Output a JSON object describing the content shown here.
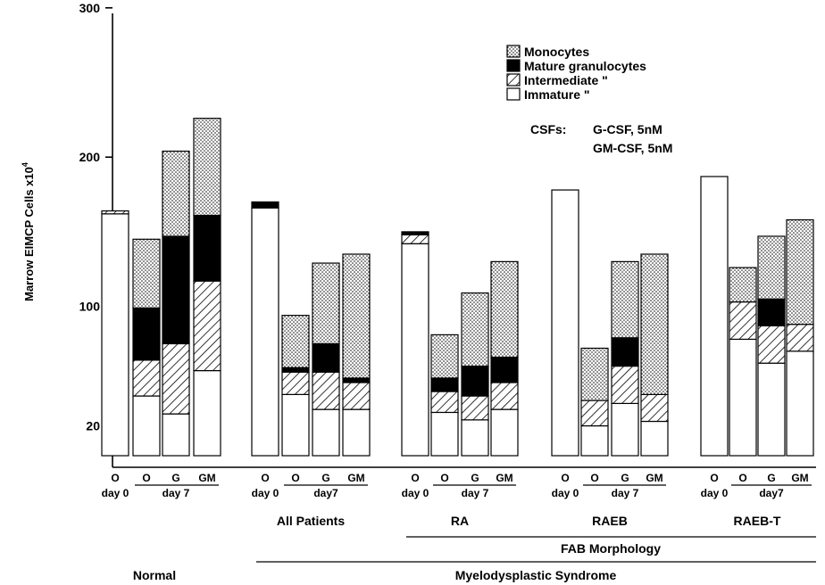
{
  "chart_data": {
    "type": "bar",
    "stacked": true,
    "ylabel": "Marrow EIMCP Cells x10",
    "ylabel_superscript": "4",
    "ylim": [
      0,
      300
    ],
    "y_ticks": [
      {
        "value": 20,
        "label": "20"
      },
      {
        "value": 100,
        "label": "100"
      },
      {
        "value": 200,
        "label": "200"
      },
      {
        "value": 300,
        "label": "300"
      }
    ],
    "grid": false,
    "legend_position": "top-right",
    "series": [
      {
        "name": "Immature \"",
        "pattern": "blank"
      },
      {
        "name": "Intermediate \"",
        "pattern": "hatched"
      },
      {
        "name": "Mature granulocytes",
        "pattern": "solid"
      },
      {
        "name": "Monocytes",
        "pattern": "dotted"
      }
    ],
    "legend_order": [
      3,
      2,
      1,
      0
    ],
    "csf_note": {
      "label": "CSFs:",
      "lines": [
        "G-CSF, 5nM",
        "GM-CSF, 5nM"
      ]
    },
    "bars": [
      {
        "group": "Normal",
        "code": "O",
        "values": [
          162,
          2,
          0,
          0
        ]
      },
      {
        "group": "Normal",
        "code": "O",
        "values": [
          40,
          24,
          35,
          46
        ]
      },
      {
        "group": "Normal",
        "code": "G",
        "values": [
          28,
          47,
          72,
          57
        ]
      },
      {
        "group": "Normal",
        "code": "GM",
        "values": [
          57,
          60,
          44,
          65
        ]
      },
      {
        "group": "All Patients",
        "code": "O",
        "values": [
          166,
          0,
          4,
          0
        ]
      },
      {
        "group": "All Patients",
        "code": "O",
        "values": [
          41,
          15,
          3,
          35
        ]
      },
      {
        "group": "All Patients",
        "code": "G",
        "values": [
          31,
          25,
          19,
          54
        ]
      },
      {
        "group": "All Patients",
        "code": "GM",
        "values": [
          31,
          18,
          3,
          83
        ]
      },
      {
        "group": "RA",
        "code": "O",
        "values": [
          142,
          6,
          2,
          0
        ]
      },
      {
        "group": "RA",
        "code": "O",
        "values": [
          29,
          14,
          9,
          29
        ]
      },
      {
        "group": "RA",
        "code": "G",
        "values": [
          24,
          16,
          20,
          49
        ]
      },
      {
        "group": "RA",
        "code": "GM",
        "values": [
          31,
          18,
          17,
          64
        ]
      },
      {
        "group": "RAEB",
        "code": "O",
        "values": [
          178,
          0,
          0,
          0
        ]
      },
      {
        "group": "RAEB",
        "code": "O",
        "values": [
          20,
          17,
          0,
          35
        ]
      },
      {
        "group": "RAEB",
        "code": "G",
        "values": [
          35,
          25,
          19,
          51
        ]
      },
      {
        "group": "RAEB",
        "code": "GM",
        "values": [
          23,
          18,
          0,
          94
        ]
      },
      {
        "group": "RAEB-T",
        "code": "O",
        "values": [
          187,
          0,
          0,
          0
        ]
      },
      {
        "group": "RAEB-T",
        "code": "O",
        "values": [
          78,
          25,
          0,
          23
        ]
      },
      {
        "group": "RAEB-T",
        "code": "G",
        "values": [
          62,
          25,
          18,
          42
        ]
      },
      {
        "group": "RAEB-T",
        "code": "GM",
        "values": [
          70,
          18,
          0,
          70
        ]
      }
    ],
    "bar_codes": [
      "O",
      "O",
      "G",
      "GM",
      "O",
      "O",
      "G",
      "GM",
      "O",
      "O",
      "G",
      "GM",
      "O",
      "O",
      "G",
      "GM",
      "O",
      "O",
      "G",
      "GM"
    ],
    "day_labels": [
      {
        "text": "day 0",
        "under_bar": 0
      },
      {
        "text": "day 7",
        "under_bar": 2
      },
      {
        "text": "day 0",
        "under_bar": 4
      },
      {
        "text": "day7",
        "under_bar": 6
      },
      {
        "text": "day 0",
        "under_bar": 8
      },
      {
        "text": "day 7",
        "under_bar": 10
      },
      {
        "text": "day 0",
        "under_bar": 12
      },
      {
        "text": "day 7",
        "under_bar": 14
      },
      {
        "text": "day 0",
        "under_bar": 16
      },
      {
        "text": "day7",
        "under_bar": 18
      }
    ],
    "group_labels": [
      {
        "text": "All  Patients",
        "first_bar": 4,
        "last_bar": 7
      },
      {
        "text": "RA",
        "first_bar": 8,
        "last_bar": 11
      },
      {
        "text": "RAEB",
        "first_bar": 12,
        "last_bar": 15
      },
      {
        "text": "RAEB-T",
        "first_bar": 16,
        "last_bar": 19
      }
    ],
    "fab_label": {
      "text": "FAB Morphology",
      "first_bar": 8,
      "last_bar": 19
    },
    "mds_label": {
      "text": "Myelodysplastic Syndrome",
      "first_bar": 4,
      "last_bar": 19
    },
    "normal_label": {
      "text": "Normal",
      "first_bar": 0,
      "last_bar": 3
    }
  }
}
